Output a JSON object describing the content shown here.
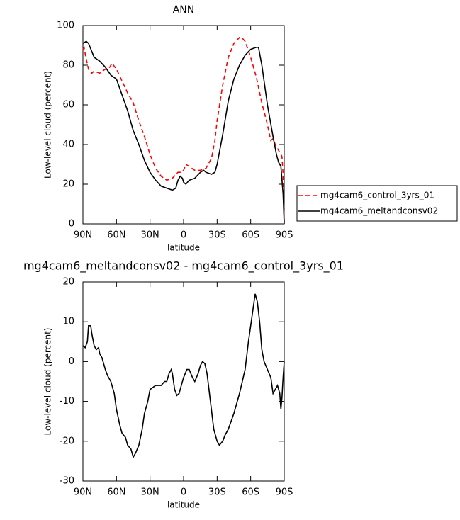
{
  "chart_data": [
    {
      "type": "line",
      "title": "ANN",
      "xlabel": "latitude",
      "ylabel": "Low-level cloud (percent)",
      "xlim": [
        90,
        -90
      ],
      "xticks": [
        {
          "value": 90,
          "label": "90N"
        },
        {
          "value": 60,
          "label": "60N"
        },
        {
          "value": 30,
          "label": "30N"
        },
        0,
        {
          "value": -30,
          "label": "30S"
        },
        {
          "value": -60,
          "label": "60S"
        },
        {
          "value": -90,
          "label": "90S"
        }
      ],
      "ylim": [
        0,
        100
      ],
      "yticks": [
        0,
        20,
        40,
        60,
        80,
        100
      ],
      "legend": "right",
      "series": [
        {
          "name": "mg4cam6_control_3yrs_01",
          "color": "#ff0000",
          "line_style": "dashed",
          "x": [
            90,
            89,
            87,
            85,
            82,
            80,
            75,
            70,
            66,
            64,
            60,
            55,
            50,
            45,
            40,
            35,
            30,
            25,
            20,
            15,
            10,
            5,
            2,
            0,
            -2,
            -5,
            -10,
            -15,
            -20,
            -25,
            -28,
            -30,
            -35,
            -40,
            -45,
            -50,
            -52,
            -55,
            -60,
            -65,
            -70,
            -75,
            -78,
            -80,
            -82,
            -85,
            -88,
            -89,
            -90
          ],
          "values": [
            88,
            89,
            83,
            78,
            76,
            77,
            76,
            78,
            79,
            81,
            78,
            72,
            66,
            61,
            52,
            44,
            35,
            28,
            24,
            22,
            23,
            26,
            26,
            27,
            30,
            29,
            27,
            27,
            28,
            33,
            42,
            52,
            70,
            84,
            91,
            94,
            94,
            92,
            84,
            74,
            61,
            50,
            42,
            43,
            40,
            37,
            34,
            25,
            0
          ]
        },
        {
          "name": "mg4cam6_meltandconsv02",
          "color": "#000000",
          "line_style": "solid",
          "x": [
            90,
            87,
            85,
            80,
            75,
            70,
            65,
            60,
            55,
            50,
            45,
            40,
            35,
            30,
            25,
            20,
            15,
            10,
            7,
            5,
            3,
            1,
            0,
            -2,
            -5,
            -10,
            -15,
            -18,
            -20,
            -25,
            -28,
            -30,
            -35,
            -40,
            -45,
            -50,
            -55,
            -60,
            -65,
            -67,
            -70,
            -75,
            -80,
            -83,
            -85,
            -87,
            -89,
            -90
          ],
          "values": [
            91,
            92,
            91,
            84,
            82,
            79,
            75,
            73,
            65,
            57,
            47,
            40,
            32,
            26,
            22,
            19,
            18,
            17,
            18,
            22,
            24,
            23,
            21,
            20,
            22,
            23,
            26,
            27,
            26,
            25,
            26,
            30,
            45,
            62,
            73,
            80,
            85,
            88,
            89,
            89,
            80,
            60,
            44,
            35,
            31,
            29,
            15,
            0
          ]
        }
      ]
    },
    {
      "type": "line",
      "title": "mg4cam6_meltandconsv02 - mg4cam6_control_3yrs_01",
      "xlabel": "latitude",
      "ylabel": "Low-level cloud (percent)",
      "xlim": [
        90,
        -90
      ],
      "xticks": [
        {
          "value": 90,
          "label": "90N"
        },
        {
          "value": 60,
          "label": "60N"
        },
        {
          "value": 30,
          "label": "30N"
        },
        0,
        {
          "value": -30,
          "label": "30S"
        },
        {
          "value": -60,
          "label": "60S"
        },
        {
          "value": -90,
          "label": "90S"
        }
      ],
      "ylim": [
        -30,
        20
      ],
      "yticks": [
        -30,
        -20,
        -10,
        0,
        10,
        20
      ],
      "series": [
        {
          "color": "#000000",
          "line_style": "solid",
          "x": [
            90,
            88,
            86,
            85,
            83,
            82,
            80,
            78,
            76,
            75,
            73,
            70,
            68,
            65,
            62,
            60,
            57,
            55,
            52,
            50,
            47,
            45,
            43,
            40,
            37,
            35,
            32,
            30,
            25,
            20,
            17,
            15,
            13,
            11,
            10,
            8,
            6,
            4,
            2,
            0,
            -3,
            -5,
            -8,
            -10,
            -13,
            -15,
            -17,
            -19,
            -21,
            -24,
            -27,
            -30,
            -32,
            -35,
            -37,
            -40,
            -45,
            -50,
            -55,
            -58,
            -60,
            -63,
            -64,
            -66,
            -68,
            -70,
            -72,
            -75,
            -78,
            -80,
            -82,
            -84,
            -86,
            -87,
            -88,
            -89,
            -90
          ],
          "values": [
            4,
            3.5,
            5,
            9,
            9,
            7,
            4,
            3,
            3.5,
            2,
            1,
            -2,
            -3.5,
            -5,
            -8,
            -12,
            -16,
            -18,
            -19,
            -21,
            -22,
            -24,
            -23,
            -21,
            -17,
            -13,
            -10,
            -7,
            -6,
            -6,
            -5,
            -5,
            -3,
            -2,
            -3,
            -7,
            -8.5,
            -8,
            -6,
            -4,
            -2,
            -2,
            -4,
            -5,
            -3,
            -1,
            0,
            -0.5,
            -3,
            -10,
            -17,
            -20,
            -21,
            -20,
            -18.5,
            -17,
            -13,
            -8,
            -2,
            5,
            9,
            15,
            17,
            15,
            10,
            3,
            0,
            -2,
            -4,
            -8,
            -7,
            -6,
            -8,
            -12,
            -9,
            -4,
            0
          ]
        }
      ]
    }
  ]
}
